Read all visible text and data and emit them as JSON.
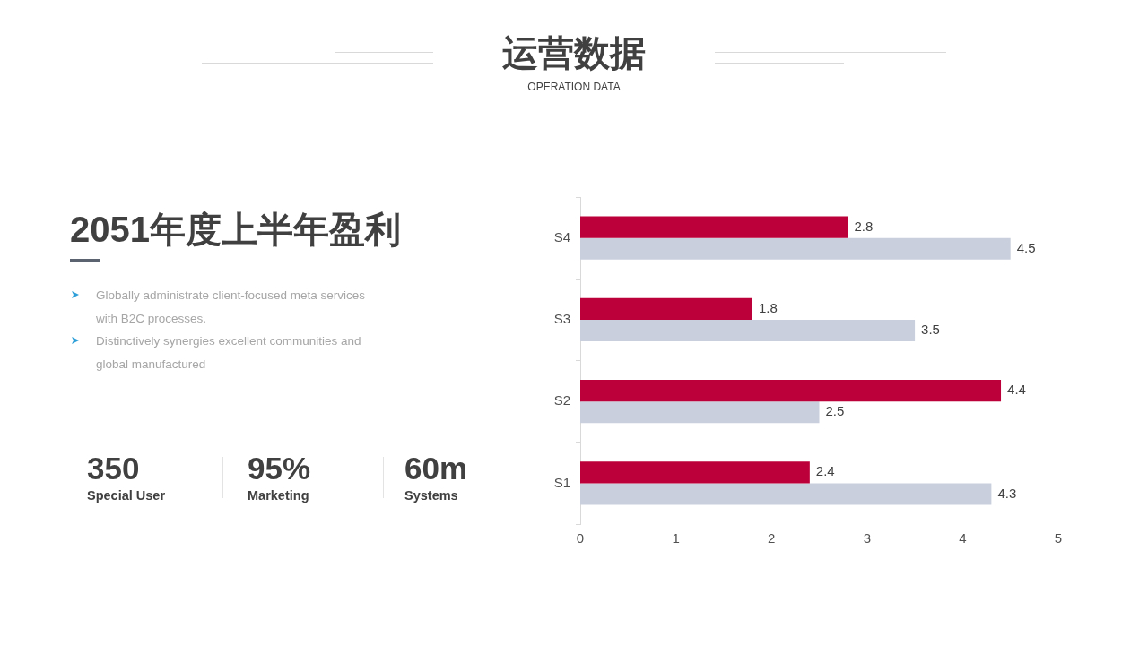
{
  "chart_data": {
    "type": "bar",
    "orientation": "horizontal",
    "title": "运营数据",
    "subtitle": "OPERATION DATA",
    "categories": [
      "S4",
      "S3",
      "S2",
      "S1"
    ],
    "series": [
      {
        "color": "#bc0039",
        "values": [
          2.8,
          1.8,
          4.4,
          2.4
        ]
      },
      {
        "color": "#c9cfdc",
        "values": [
          4.5,
          3.5,
          2.5,
          4.3
        ]
      }
    ],
    "xlim": [
      0,
      5
    ],
    "xticks": [
      0,
      1,
      2,
      3,
      4,
      5
    ],
    "data_labels": true,
    "annotations": [
      "2051年度上半年盈利",
      "Globally administrate client-focused meta services with B2C processes.",
      "Distinctively synergies excellent communities and global manufactured",
      "350",
      "Special User",
      "95%",
      "Marketing",
      "60m",
      "Systems"
    ]
  }
}
